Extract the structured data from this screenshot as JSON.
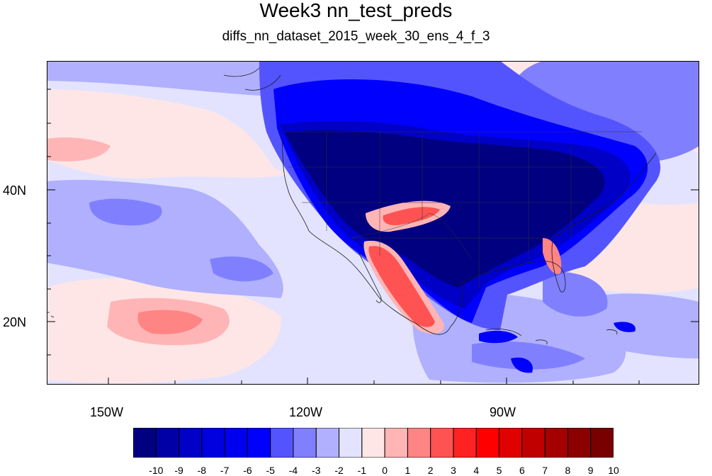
{
  "title": "Week3 nn_test_preds",
  "subtitle": "diffs_nn_dataset_2015_week_30_ens_4_f_3",
  "map": {
    "projection": "cylindrical equidistant",
    "lon_range": [
      "160W",
      "62W"
    ],
    "lat_range": [
      "11N",
      "60N"
    ],
    "lon_ticks": [
      "150W",
      "120W",
      "90W"
    ],
    "lat_ticks": [
      "40N",
      "20N"
    ],
    "features": [
      "coastlines",
      "US state boundaries",
      "country borders"
    ]
  },
  "colorbar": {
    "labels": [
      "-10",
      "-9",
      "-8",
      "-7",
      "-6",
      "-5",
      "-4",
      "-3",
      "-2",
      "-1",
      "0",
      "1",
      "2",
      "3",
      "4",
      "5",
      "6",
      "7",
      "8",
      "9",
      "10"
    ],
    "colors": [
      "#000080",
      "#0000A6",
      "#0000C6",
      "#0000DE",
      "#0000EE",
      "#0000FF",
      "#5454FF",
      "#8080FF",
      "#B0B0FF",
      "#E3E3FF",
      "#FFE6E6",
      "#FFB5B5",
      "#FF8484",
      "#FF5353",
      "#FF2222",
      "#FF0000",
      "#E00000",
      "#C00000",
      "#A50000",
      "#8C0000",
      "#780000"
    ]
  }
}
